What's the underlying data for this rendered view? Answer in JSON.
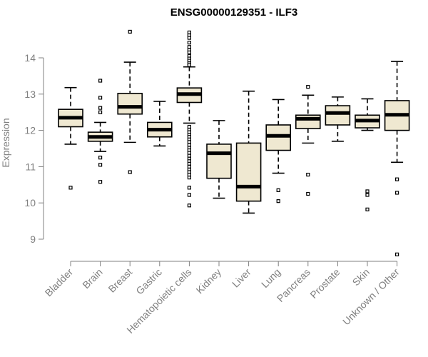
{
  "chart_data": {
    "type": "box",
    "title": "ENSG00000129351 - ILF3",
    "xlabel": "",
    "ylabel": "Expression",
    "ylim": [
      8.5,
      14.9
    ],
    "yticks": [
      9,
      10,
      11,
      12,
      13,
      14
    ],
    "grid": false,
    "categories": [
      "Bladder",
      "Brain",
      "Breast",
      "Gastric",
      "Hematopoietic cells",
      "Kidney",
      "Liver",
      "Lung",
      "Pancreas",
      "Prostate",
      "Skin",
      "Unknown / Other"
    ],
    "boxes": [
      {
        "q1": 12.1,
        "median": 12.35,
        "q3": 12.58,
        "whisker_low": 11.62,
        "whisker_high": 13.18,
        "outliers": [
          10.42
        ]
      },
      {
        "q1": 11.7,
        "median": 11.82,
        "q3": 11.95,
        "whisker_low": 11.42,
        "whisker_high": 12.22,
        "outliers": [
          13.37,
          12.9,
          12.62,
          12.5,
          11.25,
          11.05,
          10.58
        ]
      },
      {
        "q1": 12.45,
        "median": 12.65,
        "q3": 13.02,
        "whisker_low": 11.67,
        "whisker_high": 13.88,
        "outliers": [
          14.72,
          10.85
        ]
      },
      {
        "q1": 11.82,
        "median": 12.02,
        "q3": 12.22,
        "whisker_low": 11.57,
        "whisker_high": 12.8,
        "outliers": []
      },
      {
        "q1": 12.77,
        "median": 13.0,
        "q3": 13.17,
        "whisker_low": 12.2,
        "whisker_high": 13.75,
        "outliers": [
          14.7,
          14.62,
          14.55,
          14.42,
          14.3,
          14.22,
          14.15,
          14.05,
          13.98,
          13.92,
          13.85,
          13.8,
          12.1,
          12.02,
          11.95,
          11.88,
          11.82,
          11.75,
          11.68,
          11.6,
          11.52,
          11.45,
          11.38,
          11.3,
          11.22,
          11.15,
          11.08,
          11.0,
          10.92,
          10.85,
          10.78,
          10.7,
          10.42,
          10.22,
          9.93
        ]
      },
      {
        "q1": 10.68,
        "median": 11.37,
        "q3": 11.62,
        "whisker_low": 10.13,
        "whisker_high": 12.27,
        "outliers": []
      },
      {
        "q1": 10.05,
        "median": 10.45,
        "q3": 11.65,
        "whisker_low": 9.72,
        "whisker_high": 13.08,
        "outliers": []
      },
      {
        "q1": 11.45,
        "median": 11.85,
        "q3": 12.15,
        "whisker_low": 10.82,
        "whisker_high": 12.85,
        "outliers": [
          10.35,
          10.05
        ]
      },
      {
        "q1": 12.05,
        "median": 12.32,
        "q3": 12.42,
        "whisker_low": 11.65,
        "whisker_high": 12.97,
        "outliers": [
          13.2,
          10.78,
          10.25
        ]
      },
      {
        "q1": 12.15,
        "median": 12.48,
        "q3": 12.68,
        "whisker_low": 11.7,
        "whisker_high": 12.92,
        "outliers": []
      },
      {
        "q1": 12.07,
        "median": 12.27,
        "q3": 12.42,
        "whisker_low": 12.0,
        "whisker_high": 12.87,
        "outliers": [
          10.32,
          10.22,
          9.82
        ]
      },
      {
        "q1": 12.0,
        "median": 12.43,
        "q3": 12.82,
        "whisker_low": 11.12,
        "whisker_high": 13.9,
        "outliers": [
          10.65,
          10.28,
          8.58
        ]
      }
    ],
    "colors": {
      "box_fill": "#efe8d1",
      "box_stroke": "#000000",
      "axis": "#808080",
      "label": "#808080",
      "title": "#000000"
    }
  }
}
